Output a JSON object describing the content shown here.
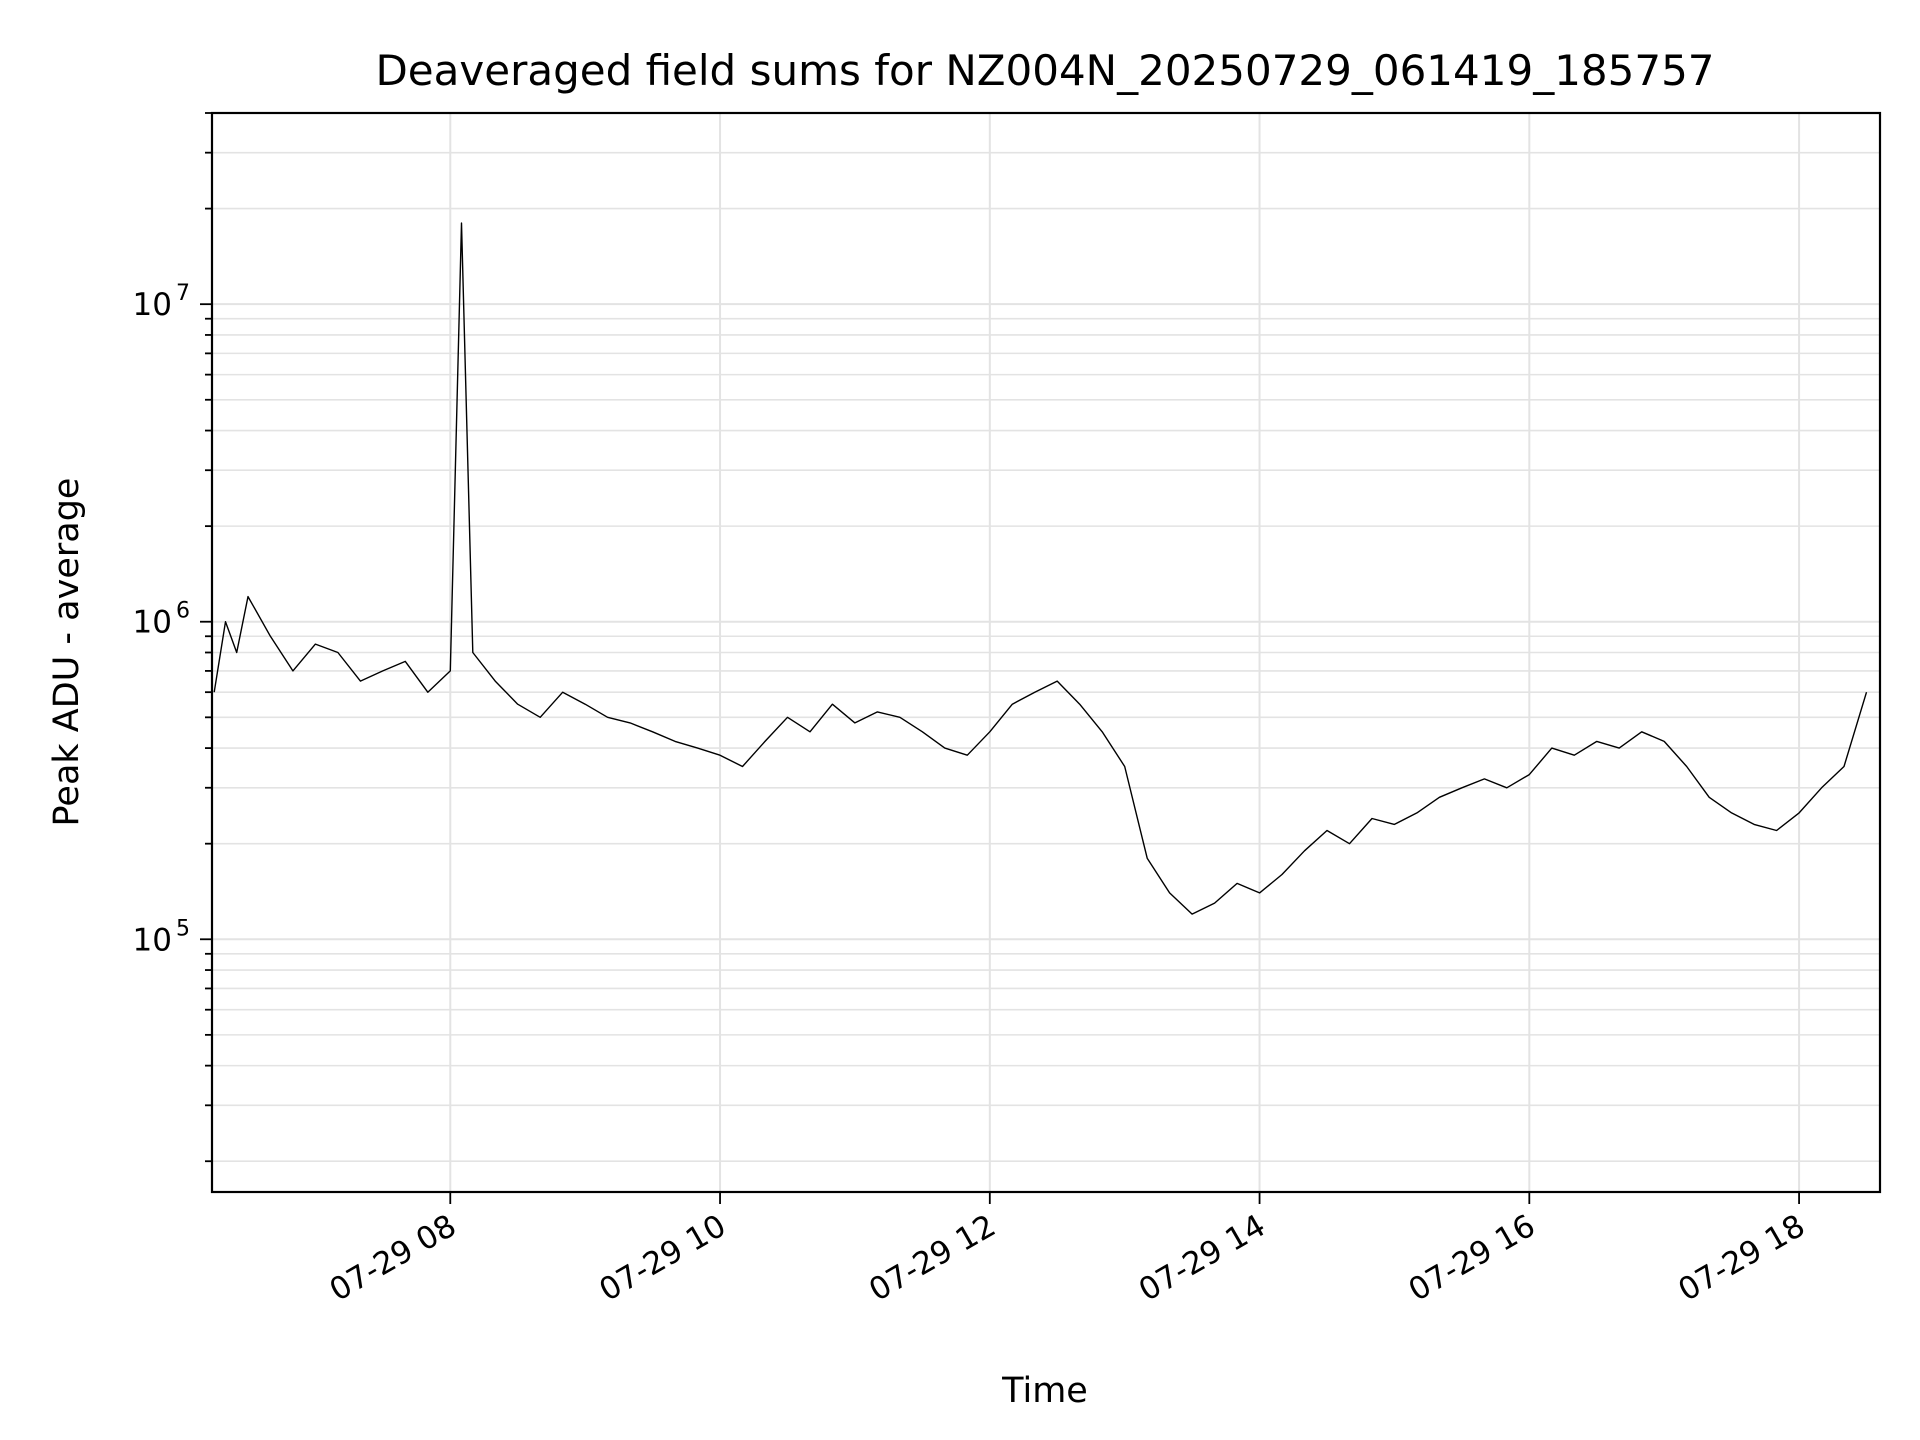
{
  "chart_data": {
    "type": "line",
    "title": "Deaveraged field sums for NZ004N_20250729_061419_185757",
    "xlabel": "Time",
    "ylabel": "Peak ADU - average",
    "x_scale": "time",
    "y_scale": "log",
    "xlim": [
      "2025-07-29 06:14",
      "2025-07-29 18:36"
    ],
    "ylim": [
      16000,
      40000000
    ],
    "grid": true,
    "line_color": "#000000",
    "x_ticks": [
      {
        "value": "2025-07-29 08:00",
        "label": "07-29 08"
      },
      {
        "value": "2025-07-29 10:00",
        "label": "07-29 10"
      },
      {
        "value": "2025-07-29 12:00",
        "label": "07-29 12"
      },
      {
        "value": "2025-07-29 14:00",
        "label": "07-29 14"
      },
      {
        "value": "2025-07-29 16:00",
        "label": "07-29 16"
      },
      {
        "value": "2025-07-29 18:00",
        "label": "07-29 18"
      }
    ],
    "y_ticks": [
      {
        "value": 100000,
        "base": "10",
        "exp": "5"
      },
      {
        "value": 1000000,
        "base": "10",
        "exp": "6"
      },
      {
        "value": 10000000,
        "base": "10",
        "exp": "7"
      }
    ],
    "series": [
      {
        "points": [
          [
            "06:15",
            600000
          ],
          [
            "06:20",
            1000000
          ],
          [
            "06:25",
            800000
          ],
          [
            "06:30",
            1200000
          ],
          [
            "06:40",
            900000
          ],
          [
            "06:50",
            700000
          ],
          [
            "07:00",
            850000
          ],
          [
            "07:10",
            800000
          ],
          [
            "07:20",
            650000
          ],
          [
            "07:30",
            700000
          ],
          [
            "07:40",
            750000
          ],
          [
            "07:50",
            600000
          ],
          [
            "08:00",
            700000
          ],
          [
            "08:05",
            18000000
          ],
          [
            "08:10",
            800000
          ],
          [
            "08:20",
            650000
          ],
          [
            "08:30",
            550000
          ],
          [
            "08:40",
            500000
          ],
          [
            "08:50",
            600000
          ],
          [
            "09:00",
            550000
          ],
          [
            "09:10",
            500000
          ],
          [
            "09:20",
            480000
          ],
          [
            "09:30",
            450000
          ],
          [
            "09:40",
            420000
          ],
          [
            "09:50",
            400000
          ],
          [
            "10:00",
            380000
          ],
          [
            "10:10",
            350000
          ],
          [
            "10:20",
            420000
          ],
          [
            "10:30",
            500000
          ],
          [
            "10:40",
            450000
          ],
          [
            "10:50",
            550000
          ],
          [
            "11:00",
            480000
          ],
          [
            "11:10",
            520000
          ],
          [
            "11:20",
            500000
          ],
          [
            "11:30",
            450000
          ],
          [
            "11:40",
            400000
          ],
          [
            "11:50",
            380000
          ],
          [
            "12:00",
            450000
          ],
          [
            "12:10",
            550000
          ],
          [
            "12:20",
            600000
          ],
          [
            "12:30",
            650000
          ],
          [
            "12:40",
            550000
          ],
          [
            "12:50",
            450000
          ],
          [
            "13:00",
            350000
          ],
          [
            "13:10",
            180000
          ],
          [
            "13:20",
            140000
          ],
          [
            "13:30",
            120000
          ],
          [
            "13:40",
            130000
          ],
          [
            "13:50",
            150000
          ],
          [
            "14:00",
            140000
          ],
          [
            "14:10",
            160000
          ],
          [
            "14:20",
            190000
          ],
          [
            "14:30",
            220000
          ],
          [
            "14:40",
            200000
          ],
          [
            "14:50",
            240000
          ],
          [
            "15:00",
            230000
          ],
          [
            "15:10",
            250000
          ],
          [
            "15:20",
            280000
          ],
          [
            "15:30",
            300000
          ],
          [
            "15:40",
            320000
          ],
          [
            "15:50",
            300000
          ],
          [
            "16:00",
            330000
          ],
          [
            "16:10",
            400000
          ],
          [
            "16:20",
            380000
          ],
          [
            "16:30",
            420000
          ],
          [
            "16:40",
            400000
          ],
          [
            "16:50",
            450000
          ],
          [
            "17:00",
            420000
          ],
          [
            "17:10",
            350000
          ],
          [
            "17:20",
            280000
          ],
          [
            "17:30",
            250000
          ],
          [
            "17:40",
            230000
          ],
          [
            "17:50",
            220000
          ],
          [
            "18:00",
            250000
          ],
          [
            "18:10",
            300000
          ],
          [
            "18:20",
            350000
          ],
          [
            "18:30",
            600000
          ]
        ]
      }
    ]
  }
}
